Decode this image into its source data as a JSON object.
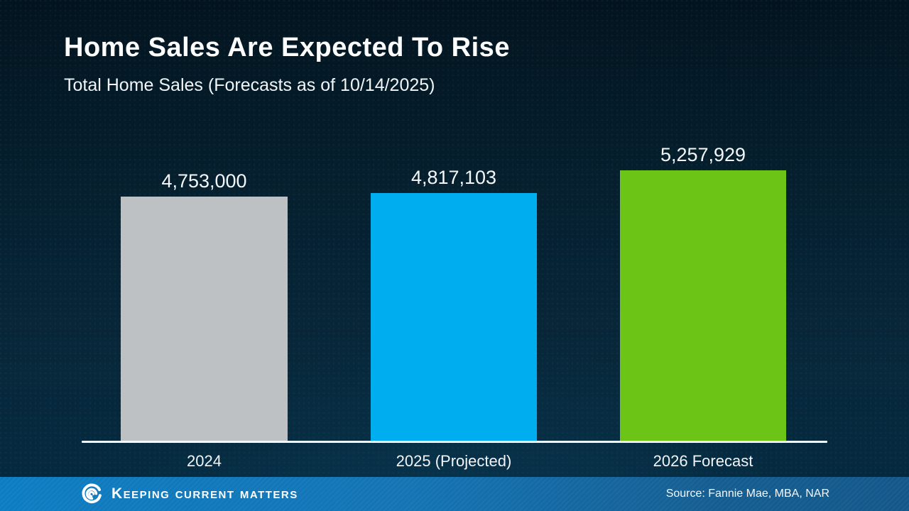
{
  "slide": {
    "title": "Home Sales Are Expected To Rise",
    "subtitle": "Total Home Sales (Forecasts as of 10/14/2025)"
  },
  "chart_data": {
    "type": "bar",
    "title": "Total Home Sales (Forecasts as of 10/14/2025)",
    "categories": [
      "2024",
      "2025 (Projected)",
      "2026 Forecast"
    ],
    "values": [
      4753000,
      4817103,
      5257929
    ],
    "value_labels": [
      "4,753,000",
      "4,817,103",
      "5,257,929"
    ],
    "bar_colors": [
      "#bec1c3",
      "#00aeef",
      "#6cc417"
    ],
    "xlabel": "",
    "ylabel": "",
    "grid": false,
    "legend": "none",
    "baseline": "white horizontal axis line, no y-axis, value labels above bars"
  },
  "footer": {
    "brand_words": "Keeping Current Matters",
    "brand_icon": "kcm-swirl-logo",
    "source": "Source: Fannie Mae, MBA, NAR",
    "bar_color_left": "#0d7dc2",
    "bar_color_right": "#14588a"
  },
  "colors": {
    "background_top": "#03141f",
    "background_bottom": "#042a40",
    "text": "#ffffff",
    "axis_line": "#f4f7f8"
  }
}
